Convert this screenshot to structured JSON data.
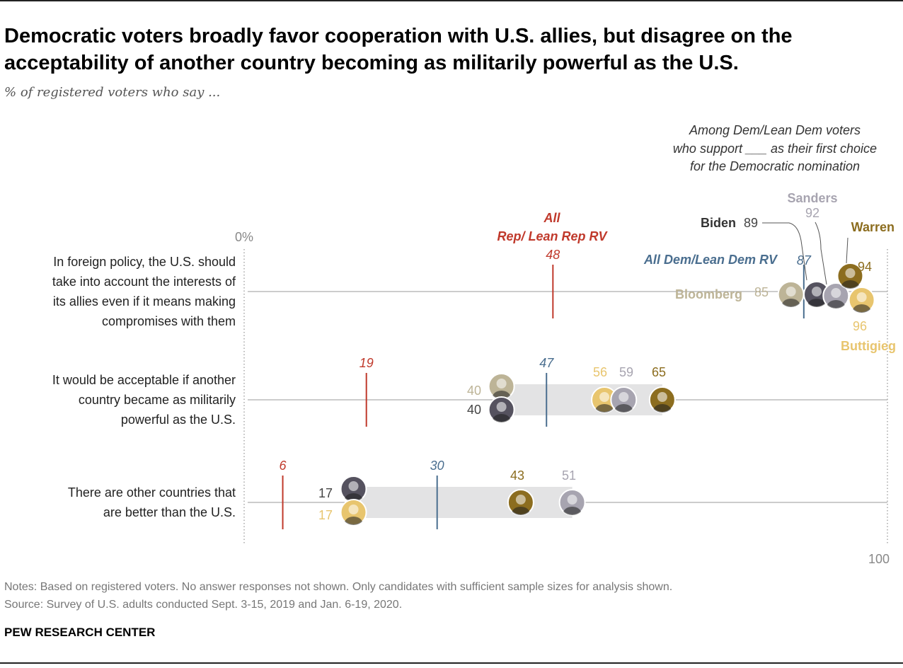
{
  "title": "Democratic voters broadly favor cooperation with U.S. allies, but disagree on the acceptability of another country becoming as militarily powerful as the U.S.",
  "subtitle": "% of registered voters who say ...",
  "intro": [
    "Among Dem/Lean Dem voters",
    "who support ___ as their first choice",
    "for the Democratic nomination"
  ],
  "notes": "Notes: Based on registered voters. No answer responses not shown. Only candidates with sufficient sample sizes for analysis shown.",
  "source": "Source: Survey of U.S. adults conducted Sept. 3-15, 2019 and Jan. 6-19, 2020.",
  "brand": "PEW RESEARCH CENTER",
  "colors": {
    "rep": "#C0392B",
    "dem": "#4A6E8F",
    "Biden": "#55525F",
    "Sanders": "#A7A4B0",
    "Warren": "#8C6D1F",
    "Buttigieg": "#E8C56E",
    "Bloomberg": "#BDB497",
    "range": "#E3E3E4"
  },
  "chart_data": {
    "type": "dot range",
    "xlim": [
      0,
      100
    ],
    "tick_labels": [
      "0%",
      "100"
    ],
    "reference_labels": {
      "rep": "All Rep/ Lean Rep RV",
      "dem": "All Dem/Lean Dem RV"
    },
    "categories": [
      "In foreign policy, the U.S. should take into account the interests of its allies even if it means making compromises with them",
      "It would be acceptable if another country became as militarily powerful as the U.S.",
      "There are other countries that are better than the U.S."
    ],
    "category_lines": [
      [
        "In foreign policy, the U.S. should",
        "take into account the interests of",
        "its allies even if it means making",
        "compromises with them"
      ],
      [
        "It would be acceptable if another",
        "country became as militarily",
        "powerful as the U.S."
      ],
      [
        "There are other countries that",
        "are better than the U.S."
      ]
    ],
    "series": [
      {
        "name": "All Rep/ Lean Rep RV",
        "values": [
          48,
          19,
          6
        ]
      },
      {
        "name": "All Dem/Lean Dem RV",
        "values": [
          87,
          47,
          30
        ]
      },
      {
        "name": "Biden",
        "values": [
          89,
          40,
          17
        ]
      },
      {
        "name": "Sanders",
        "values": [
          92,
          59,
          51
        ]
      },
      {
        "name": "Warren",
        "values": [
          94,
          65,
          43
        ]
      },
      {
        "name": "Buttigieg",
        "values": [
          96,
          56,
          17
        ]
      },
      {
        "name": "Bloomberg",
        "values": [
          85,
          40,
          null
        ]
      }
    ]
  }
}
